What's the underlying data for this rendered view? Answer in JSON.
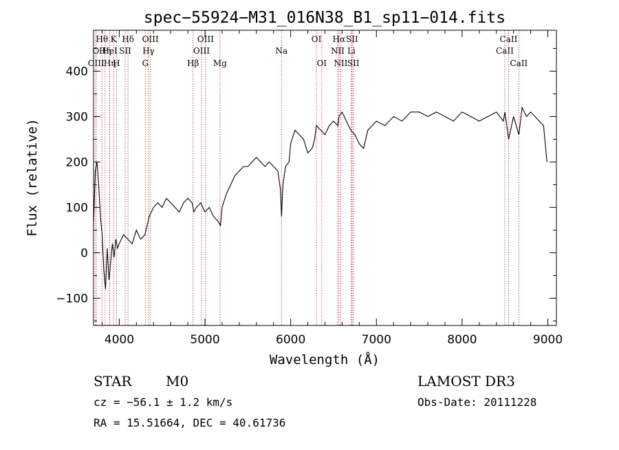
{
  "chart_data": {
    "type": "line",
    "title": "spec−55924−M31_016N38_B1_sp11−014.fits",
    "xlabel": "Wavelength (Å)",
    "ylabel": "Flux (relative)",
    "xlim": [
      3700,
      9100
    ],
    "ylim": [
      -160,
      490
    ],
    "xticks": [
      4000,
      5000,
      6000,
      7000,
      8000,
      9000
    ],
    "yticks": [
      -100,
      0,
      100,
      200,
      300,
      400
    ],
    "ytick_labels": [
      "−100",
      "0",
      "100",
      "200",
      "300",
      "400"
    ],
    "grid": false,
    "series": [
      {
        "x": [
          3700,
          3720,
          3740,
          3760,
          3780,
          3800,
          3820,
          3840,
          3860,
          3880,
          3900,
          3920,
          3940,
          3960,
          3980,
          4000,
          4050,
          4100,
          4150,
          4200,
          4250,
          4300,
          4350,
          4400,
          4450,
          4500,
          4550,
          4600,
          4650,
          4700,
          4750,
          4800,
          4850,
          4870,
          4900,
          4950,
          5000,
          5050,
          5100,
          5150,
          5180,
          5200,
          5250,
          5300,
          5350,
          5400,
          5450,
          5500,
          5550,
          5600,
          5650,
          5700,
          5750,
          5800,
          5850,
          5880,
          5893,
          5910,
          5940,
          5980,
          6000,
          6050,
          6100,
          6150,
          6200,
          6250,
          6280,
          6300,
          6350,
          6400,
          6450,
          6500,
          6550,
          6563,
          6600,
          6650,
          6700,
          6750,
          6800,
          6850,
          6900,
          7000,
          7100,
          7200,
          7300,
          7400,
          7500,
          7600,
          7700,
          7800,
          7900,
          8000,
          8100,
          8200,
          8300,
          8400,
          8480,
          8500,
          8542,
          8600,
          8662,
          8700,
          8750,
          8800,
          8850,
          8900,
          8950,
          8990
        ],
        "y": [
          60,
          180,
          200,
          150,
          80,
          40,
          -40,
          -80,
          10,
          -60,
          -20,
          20,
          -10,
          30,
          10,
          20,
          40,
          30,
          20,
          50,
          30,
          40,
          80,
          100,
          110,
          100,
          120,
          110,
          100,
          90,
          110,
          120,
          110,
          90,
          100,
          110,
          90,
          100,
          80,
          70,
          60,
          100,
          130,
          150,
          170,
          180,
          190,
          190,
          200,
          210,
          200,
          190,
          200,
          190,
          180,
          140,
          80,
          150,
          190,
          200,
          240,
          270,
          260,
          250,
          220,
          230,
          250,
          280,
          270,
          260,
          280,
          290,
          280,
          300,
          310,
          290,
          270,
          260,
          240,
          230,
          270,
          290,
          280,
          300,
          290,
          310,
          310,
          300,
          310,
          300,
          290,
          310,
          300,
          290,
          300,
          310,
          290,
          310,
          250,
          300,
          260,
          320,
          300,
          310,
          300,
          290,
          280,
          200
        ]
      }
    ],
    "spectral_lines": [
      {
        "label": "Hθ",
        "x": 3798,
        "row": 1
      },
      {
        "label": "O",
        "x": 3727,
        "row": 2
      },
      {
        "label": "OIII",
        "x": 3730,
        "row": 3
      },
      {
        "label": "Hη",
        "x": 3835,
        "row": 2
      },
      {
        "label": "K",
        "x": 3934,
        "row": 1
      },
      {
        "label": "HeI",
        "x": 3889,
        "row": 2
      },
      {
        "label": "Hη",
        "x": 3889,
        "row": 3
      },
      {
        "label": "H",
        "x": 3968,
        "row": 3
      },
      {
        "label": "Hδ",
        "x": 4102,
        "row": 1
      },
      {
        "label": "SII",
        "x": 4069,
        "row": 2
      },
      {
        "label": "OIII",
        "x": 4363,
        "row": 1
      },
      {
        "label": "Hγ",
        "x": 4341,
        "row": 2
      },
      {
        "label": "G",
        "x": 4304,
        "row": 3
      },
      {
        "label": "OIII",
        "x": 5007,
        "row": 1
      },
      {
        "label": "OIII",
        "x": 4959,
        "row": 2
      },
      {
        "label": "Hβ",
        "x": 4861,
        "row": 3
      },
      {
        "label": "Mg",
        "x": 5175,
        "row": 3
      },
      {
        "label": "Na",
        "x": 5893,
        "row": 2
      },
      {
        "label": "OI",
        "x": 6300,
        "row": 1
      },
      {
        "label": "OI",
        "x": 6363,
        "row": 3
      },
      {
        "label": "Hα",
        "x": 6563,
        "row": 1
      },
      {
        "label": "SII",
        "x": 6716,
        "row": 1
      },
      {
        "label": "NII",
        "x": 6548,
        "row": 2
      },
      {
        "label": "Li",
        "x": 6708,
        "row": 2
      },
      {
        "label": "NII",
        "x": 6584,
        "row": 3
      },
      {
        "label": "SII",
        "x": 6731,
        "row": 3
      },
      {
        "label": "CaII",
        "x": 8542,
        "row": 1
      },
      {
        "label": "CaII",
        "x": 8498,
        "row": 2
      },
      {
        "label": "CaII",
        "x": 8662,
        "row": 3
      }
    ]
  },
  "info": {
    "class": "STAR",
    "subclass": "M0",
    "cz": "cz = −56.1 ± 1.2 km/s",
    "coords": "RA =  15.51664, DEC =  40.61736",
    "survey": "LAMOST DR3",
    "obs_date": "Obs-Date: 20111228"
  },
  "colors": {
    "line": "#000000",
    "marker": "#b22222"
  }
}
